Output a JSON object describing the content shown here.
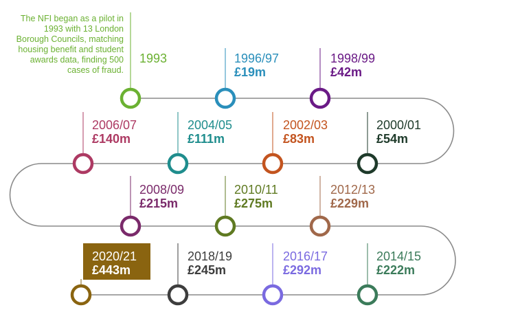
{
  "intro_text": "The NFI began as a pilot in 1993 with 13 London Borough Councils, matching housing benefit and student awards data, finding 500 cases of fraud.",
  "milestones": [
    {
      "id": "1993",
      "year": "1993",
      "amount": "",
      "color": "#6bb132"
    },
    {
      "id": "1996-97",
      "year": "1996/97",
      "amount": "£19m",
      "color": "#2a8fbb"
    },
    {
      "id": "1998-99",
      "year": "1998/99",
      "amount": "£42m",
      "color": "#6a1a86"
    },
    {
      "id": "2000-01",
      "year": "2000/01",
      "amount": "£54m",
      "color": "#1e3a2a"
    },
    {
      "id": "2002-03",
      "year": "2002/03",
      "amount": "£83m",
      "color": "#c3541f"
    },
    {
      "id": "2004-05",
      "year": "2004/05",
      "amount": "£111m",
      "color": "#1f8d8d"
    },
    {
      "id": "2006-07",
      "year": "2006/07",
      "amount": "£140m",
      "color": "#ad3a63"
    },
    {
      "id": "2008-09",
      "year": "2008/09",
      "amount": "£215m",
      "color": "#7a2a6a"
    },
    {
      "id": "2010-11",
      "year": "2010/11",
      "amount": "£275m",
      "color": "#5f7a22"
    },
    {
      "id": "2012-13",
      "year": "2012/13",
      "amount": "£229m",
      "color": "#a0684a"
    },
    {
      "id": "2014-15",
      "year": "2014/15",
      "amount": "£222m",
      "color": "#3b7b5a"
    },
    {
      "id": "2016-17",
      "year": "2016/17",
      "amount": "£292m",
      "color": "#7a6ae0"
    },
    {
      "id": "2018-19",
      "year": "2018/19",
      "amount": "£245m",
      "color": "#3d3d3d"
    },
    {
      "id": "2020-21",
      "year": "2020/21",
      "amount": "£443m",
      "color": "#8a6410"
    }
  ],
  "colors": {
    "track": "#8a8a8a",
    "highlight_bg": "#8a6410",
    "intro_text": "#6bb132"
  }
}
